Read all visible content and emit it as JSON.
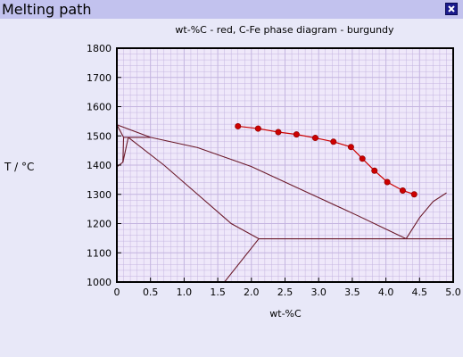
{
  "window": {
    "title": "Melting path",
    "close_icon": "close-icon"
  },
  "chart_data": {
    "type": "line",
    "title": "wt-%C - red, C-Fe phase diagram - burgundy",
    "xlabel": "wt-%C",
    "ylabel": "T / °C",
    "xlim": [
      0,
      5.0
    ],
    "ylim": [
      1000,
      1800
    ],
    "x_ticks": [
      "0",
      "0.5",
      "1.0",
      "1.5",
      "2.0",
      "2.5",
      "3.0",
      "3.5",
      "4.0",
      "4.5",
      "5.0"
    ],
    "y_ticks": [
      "1000",
      "1100",
      "1200",
      "1300",
      "1400",
      "1500",
      "1600",
      "1700",
      "1800"
    ],
    "grid": true,
    "colors": {
      "melting_path": "#cc0000",
      "phase_diagram": "#6b1a2a",
      "grid": "#c4b4e0",
      "plot_bg": "#efe8fa"
    },
    "melting_path": {
      "x": [
        1.8,
        2.1,
        2.4,
        2.67,
        2.95,
        3.22,
        3.48,
        3.65,
        3.83,
        4.02,
        4.25,
        4.42
      ],
      "y": [
        1533,
        1525,
        1513,
        1505,
        1493,
        1480,
        1462,
        1422,
        1381,
        1342,
        1313,
        1300
      ]
    },
    "phase_diagram": [
      {
        "x": [
          0,
          0.1
        ],
        "y": [
          1538,
          1495
        ]
      },
      {
        "x": [
          0.1,
          0.09
        ],
        "y": [
          1495,
          1410
        ]
      },
      {
        "x": [
          0.09,
          0
        ],
        "y": [
          1410,
          1394
        ]
      },
      {
        "x": [
          0.1,
          0.17
        ],
        "y": [
          1495,
          1495
        ]
      },
      {
        "x": [
          0.17,
          0.5
        ],
        "y": [
          1495,
          1495
        ]
      },
      {
        "x": [
          0.09,
          0.17
        ],
        "y": [
          1410,
          1495
        ]
      },
      {
        "x": [
          0,
          0.5
        ],
        "y": [
          1538,
          1495
        ]
      },
      {
        "x": [
          0.5,
          1.2,
          2.0,
          2.8,
          3.6,
          4.3
        ],
        "y": [
          1495,
          1460,
          1395,
          1310,
          1225,
          1148
        ]
      },
      {
        "x": [
          0.17,
          0.7,
          1.2,
          1.7,
          2.11
        ],
        "y": [
          1495,
          1400,
          1300,
          1200,
          1148
        ]
      },
      {
        "x": [
          2.11,
          6.67
        ],
        "y": [
          1148,
          1148
        ]
      },
      {
        "x": [
          1.6,
          2.11
        ],
        "y": [
          1000,
          1148
        ]
      },
      {
        "x": [
          4.3,
          4.5,
          4.7,
          4.9
        ],
        "y": [
          1148,
          1220,
          1275,
          1305
        ]
      }
    ]
  }
}
